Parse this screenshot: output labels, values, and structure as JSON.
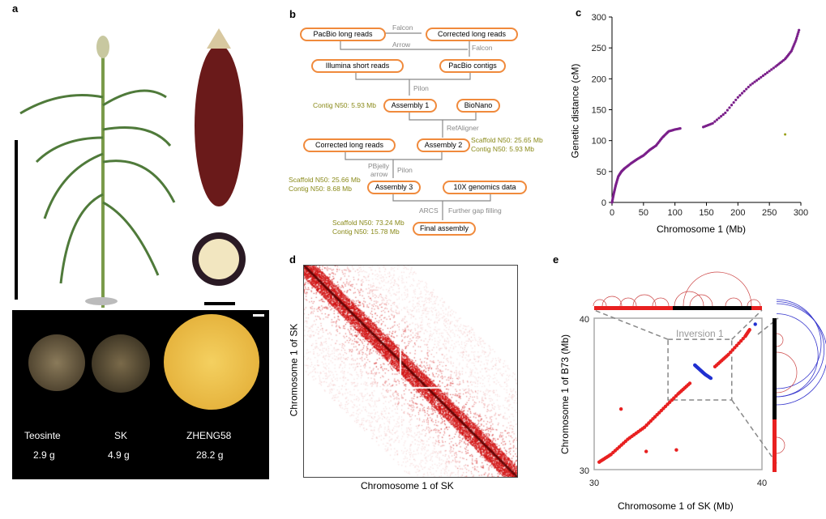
{
  "panel_labels": {
    "a": "a",
    "b": "b",
    "c": "c",
    "d": "d",
    "e": "e"
  },
  "panel_a": {
    "seeds": [
      {
        "name": "Teosinte",
        "weight": "2.9 g"
      },
      {
        "name": "SK",
        "weight": "4.9 g"
      },
      {
        "name": "ZHENG58",
        "weight": "28.2 g"
      }
    ]
  },
  "panel_b": {
    "nodes": {
      "pacbio_long": "PacBio long reads",
      "corrected1": "Corrected long reads",
      "illumina": "Illumina short reads",
      "pacbio_contigs": "PacBio contigs",
      "asm1": "Assembly 1",
      "bionano": "BioNano",
      "corrected2": "Corrected long reads",
      "asm2": "Assembly 2",
      "asm3": "Assembly 3",
      "tenx": "10X genomics data",
      "final": "Final assembly"
    },
    "edges": {
      "falcon1": "Falcon",
      "arrow": "Arrow",
      "falcon2": "Falcon",
      "pilon1": "Pilon",
      "refaligner": "RefAligner",
      "pbjelly": "PBjelly",
      "arrow2": "arrow",
      "pilon2": "Pilon",
      "arcs": "ARCS",
      "gap": "Further gap filling"
    },
    "notes": {
      "asm1": "Contig N50: 5.93 Mb",
      "asm2_scaffold": "Scaffold N50: 25.65 Mb",
      "asm2_contig": "Contig N50: 5.93 Mb",
      "asm3_scaffold": "Scaffold N50: 25.66 Mb",
      "asm3_contig": "Contig N50: 8.68 Mb",
      "final_scaffold": "Scaffold N50: 73.24 Mb",
      "final_contig": "Contig N50: 15.78 Mb"
    }
  },
  "chart_data": [
    {
      "type": "scatter",
      "xlabel": "Chromosome 1 (Mb)",
      "ylabel": "Genetic distance (cM)",
      "xlim": [
        0,
        300
      ],
      "ylim": [
        0,
        300
      ],
      "xticks": [
        "0",
        "50",
        "100",
        "150",
        "200",
        "250",
        "300"
      ],
      "yticks": [
        "0",
        "50",
        "100",
        "150",
        "200",
        "250",
        "300"
      ],
      "colors": {
        "main": "#7a1f8a",
        "outlier": "#9aa01a"
      },
      "series": [
        {
          "x": [
            0,
            3,
            6,
            10,
            15,
            20,
            30,
            40,
            50,
            60,
            70,
            80,
            90,
            100,
            110,
            145,
            160,
            180,
            200,
            220,
            240,
            260,
            275,
            285,
            292,
            298
          ],
          "y": [
            0,
            15,
            28,
            42,
            50,
            55,
            63,
            70,
            76,
            85,
            92,
            105,
            115,
            118,
            120,
            122,
            128,
            145,
            170,
            190,
            205,
            220,
            232,
            245,
            262,
            282
          ]
        },
        {
          "x": [
            275
          ],
          "y": [
            110
          ]
        }
      ]
    },
    {
      "type": "heatmap",
      "xlabel": "Chromosome 1 of SK",
      "ylabel": "Chromosome 1 of SK",
      "colors": {
        "main": "#d42020"
      }
    },
    {
      "type": "scatter",
      "xlabel": "Chromosome 1 of SK (Mb)",
      "ylabel": "Chromosome 1 of B73 (Mb)",
      "xlim": [
        30,
        40
      ],
      "ylim": [
        30,
        40
      ],
      "xticks": [
        "30",
        "40"
      ],
      "yticks": [
        "30",
        "40"
      ],
      "annotation": "Inversion 1",
      "colors": {
        "collinear": "#e82020",
        "inverted": "#2030d0"
      },
      "series": [
        {
          "x": [
            30.3,
            31.0,
            32.0,
            33.0,
            34.0,
            35.0,
            35.8,
            37.2,
            38.0,
            39.0,
            39.3,
            31.6,
            33.1,
            34.9
          ],
          "y": [
            30.5,
            31.0,
            32.0,
            32.8,
            33.9,
            35.0,
            35.8,
            36.8,
            37.6,
            38.8,
            39.3,
            34.0,
            31.2,
            31.3
          ]
        },
        {
          "x": [
            36.0,
            36.3,
            36.6,
            37.0,
            39.6
          ],
          "y": [
            36.9,
            36.6,
            36.3,
            36.0,
            39.6
          ]
        }
      ]
    }
  ]
}
